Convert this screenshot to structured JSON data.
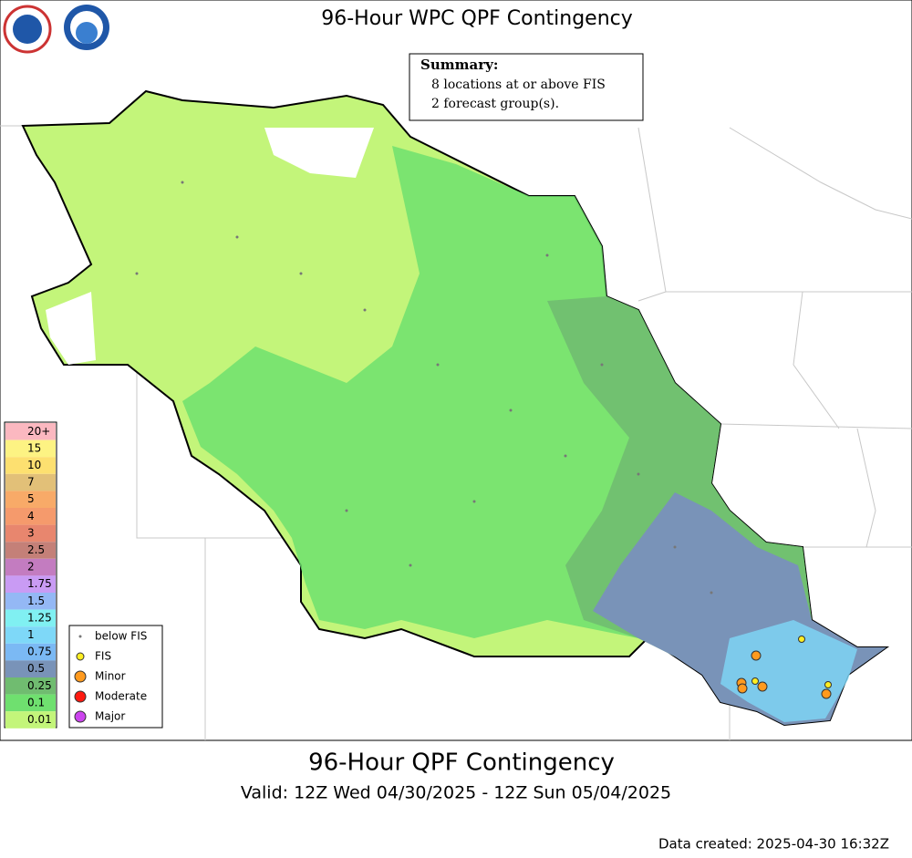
{
  "header": {
    "title": "96-Hour WPC QPF Contingency"
  },
  "summary": {
    "heading": "Summary:",
    "lines": [
      "8 locations at or above FIS",
      "2 forecast group(s)."
    ]
  },
  "color_scale": [
    {
      "label": "20+",
      "color": "#fbb8c0"
    },
    {
      "label": "15",
      "color": "#fdf383"
    },
    {
      "label": "10",
      "color": "#fde070"
    },
    {
      "label": "7",
      "color": "#e2c078"
    },
    {
      "label": "5",
      "color": "#f8aa68"
    },
    {
      "label": "4",
      "color": "#f59a6c"
    },
    {
      "label": "3",
      "color": "#e8866e"
    },
    {
      "label": "2.5",
      "color": "#c48078"
    },
    {
      "label": "2",
      "color": "#c37cc0"
    },
    {
      "label": "1.75",
      "color": "#c99bf4"
    },
    {
      "label": "1.5",
      "color": "#94b8f5"
    },
    {
      "label": "1.25",
      "color": "#80f0f2"
    },
    {
      "label": "1",
      "color": "#7ed8f8"
    },
    {
      "label": "0.75",
      "color": "#7bb9f4"
    },
    {
      "label": "0.5",
      "color": "#7993b8"
    },
    {
      "label": "0.25",
      "color": "#70bc70"
    },
    {
      "label": "0.1",
      "color": "#6fe06f"
    },
    {
      "label": "0.01",
      "color": "#c3f57a"
    }
  ],
  "symbol_legend": [
    {
      "label": "below FIS",
      "color": "#777777"
    },
    {
      "label": "FIS",
      "color": "#ffee22"
    },
    {
      "label": "Minor",
      "color": "#ff9a1e"
    },
    {
      "label": "Moderate",
      "color": "#ff1a10"
    },
    {
      "label": "Major",
      "color": "#cc44ee"
    }
  ],
  "footer": {
    "title": "96-Hour QPF Contingency",
    "valid": "Valid: 12Z Wed 04/30/2025 - 12Z Sun 05/04/2025",
    "created": "Data created: 2025-04-30 16:32Z"
  }
}
